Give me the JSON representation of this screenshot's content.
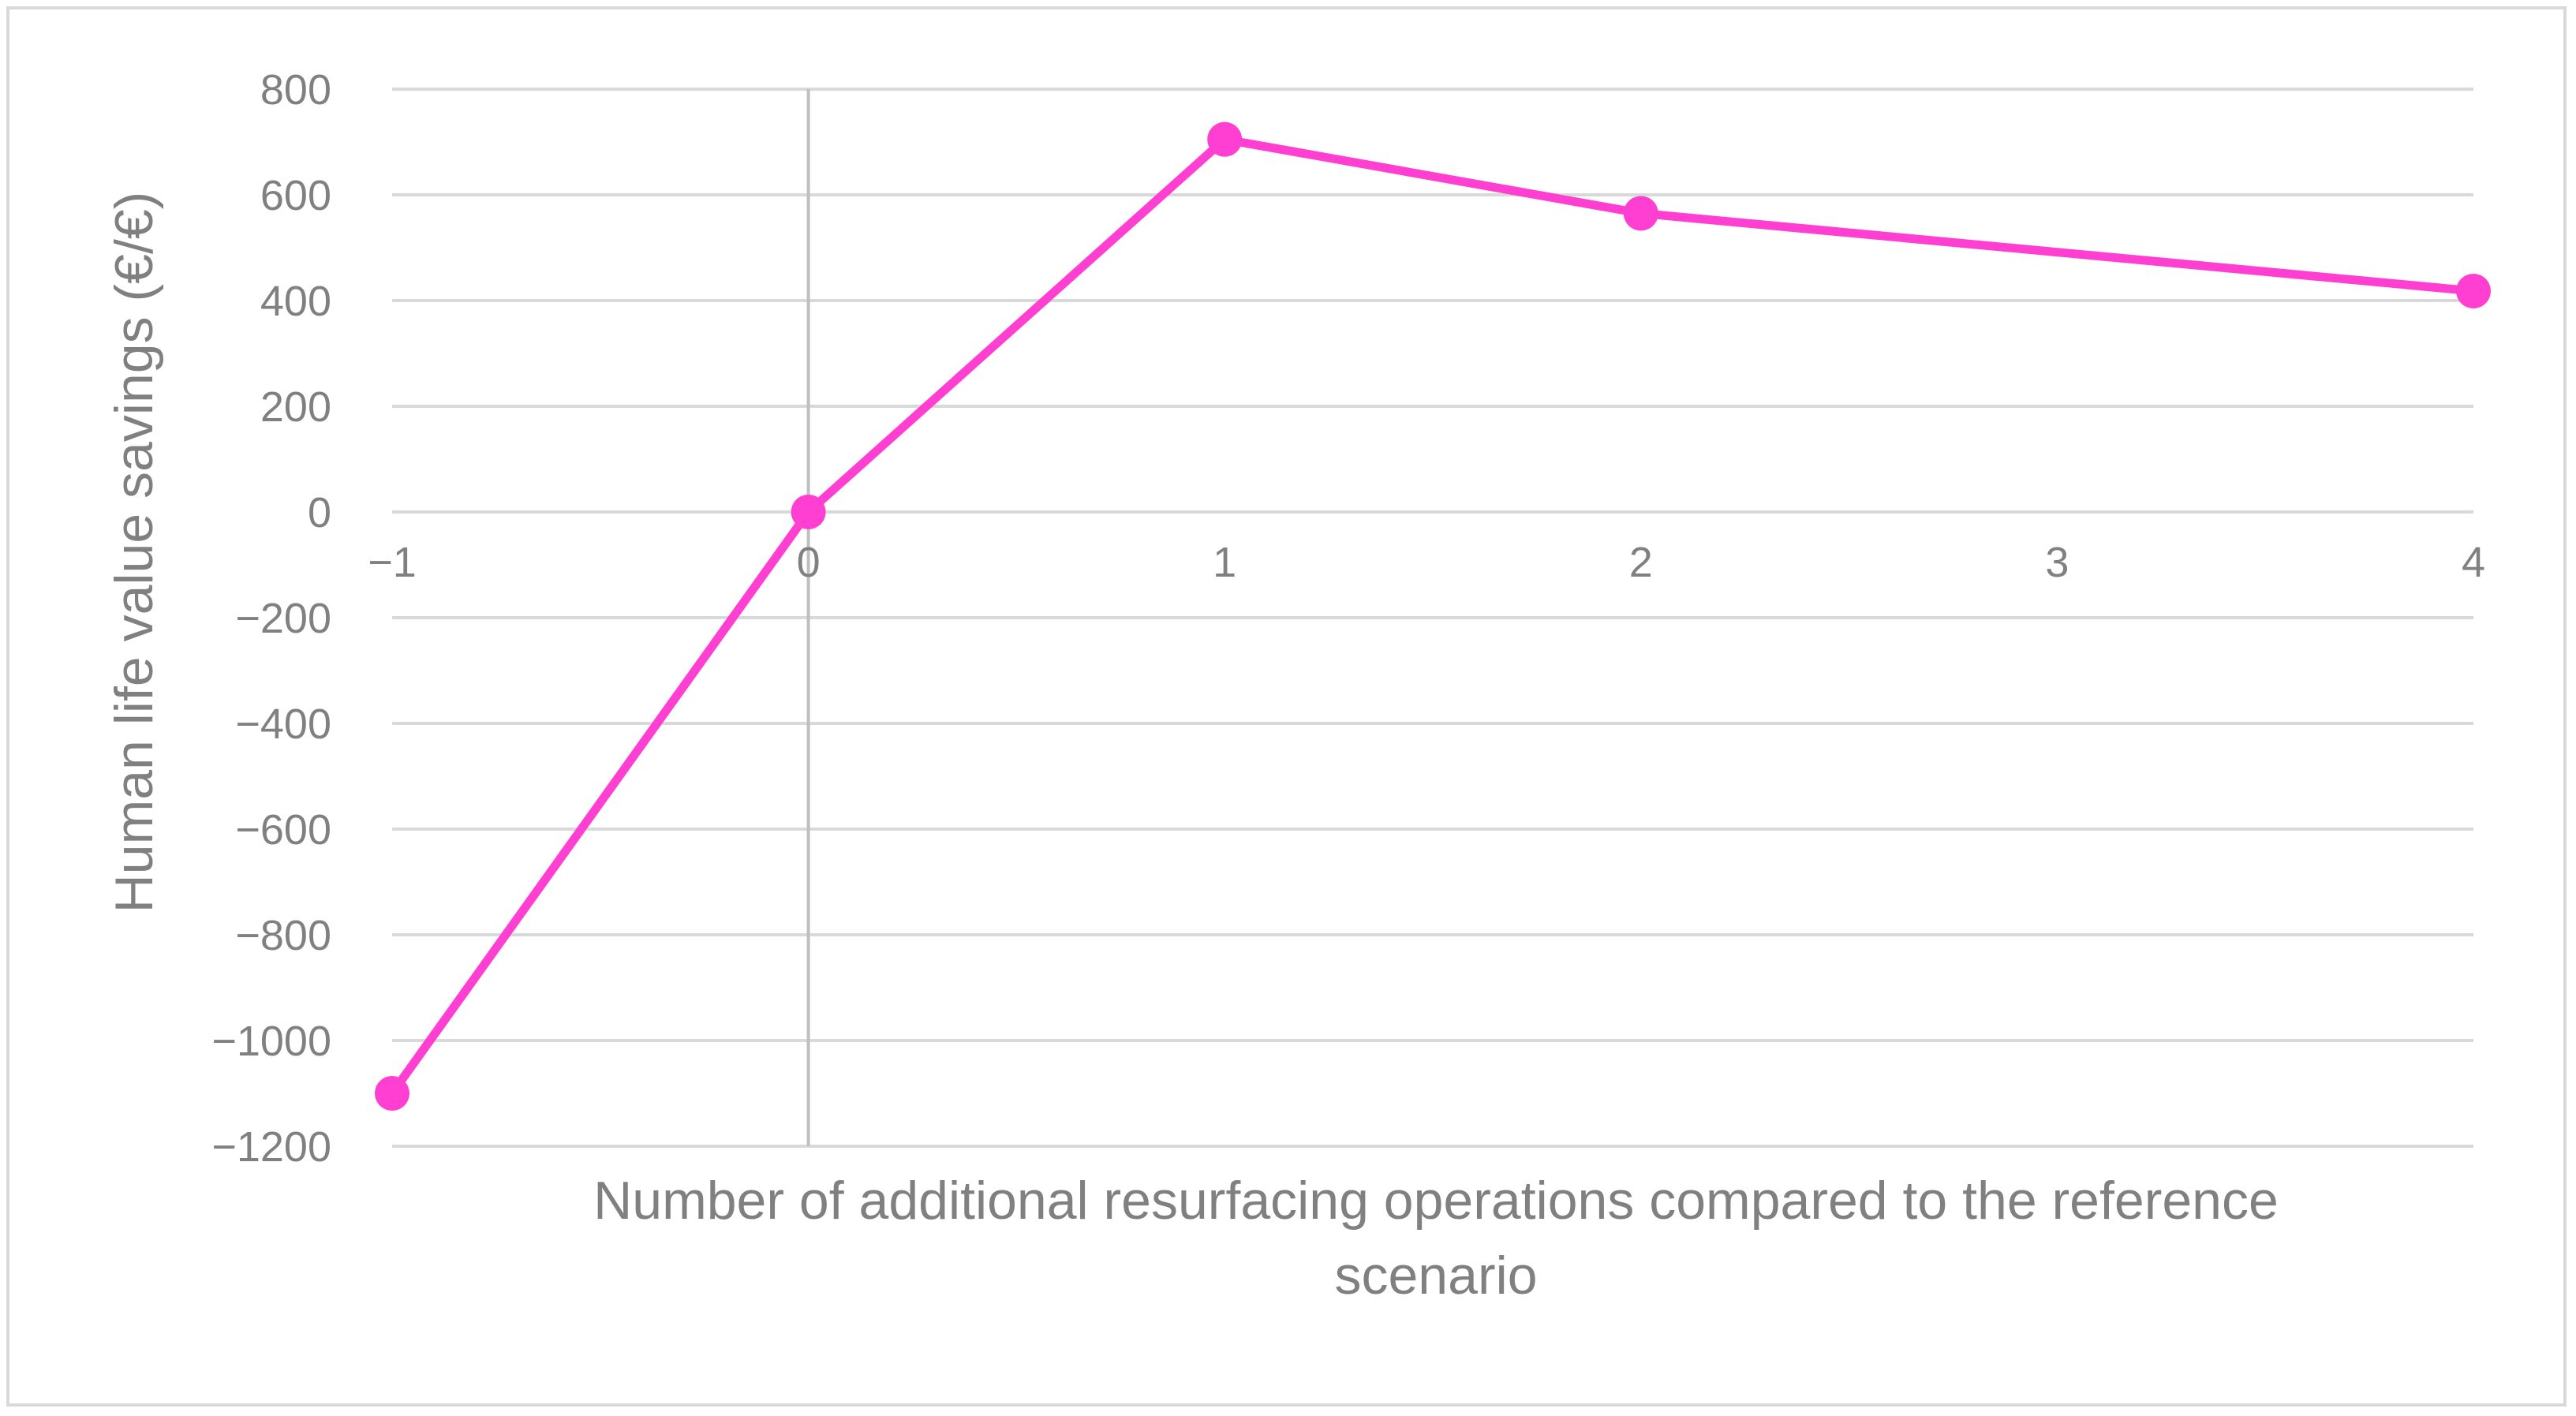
{
  "chart_data": {
    "type": "line",
    "title": "",
    "xlabel": "Number of additional resurfacing operations compared to the reference scenario",
    "xlabel_lines": [
      "Number of additional resurfacing operations compared to the reference",
      "scenario"
    ],
    "ylabel": "Human life value savings (€/€)",
    "xlim": [
      -1,
      4
    ],
    "ylim": [
      -1200,
      800
    ],
    "x_ticks": [
      -1,
      0,
      1,
      2,
      3,
      4
    ],
    "x_tick_labels": [
      "−1",
      "0",
      "1",
      "2",
      "3",
      "4"
    ],
    "y_ticks": [
      800,
      600,
      400,
      200,
      0,
      -200,
      -400,
      -600,
      -800,
      -1000,
      -1200
    ],
    "y_tick_labels": [
      "800",
      "600",
      "400",
      "200",
      "0",
      "−200",
      "−400",
      "−600",
      "−800",
      "−1000",
      "−1200"
    ],
    "grid": "horizontal",
    "legend": "none",
    "series": [
      {
        "x": [
          -1,
          0,
          1,
          2,
          4
        ],
        "values": [
          -1100,
          0,
          705,
          565,
          418
        ],
        "color": "#ff3fd1"
      }
    ]
  }
}
